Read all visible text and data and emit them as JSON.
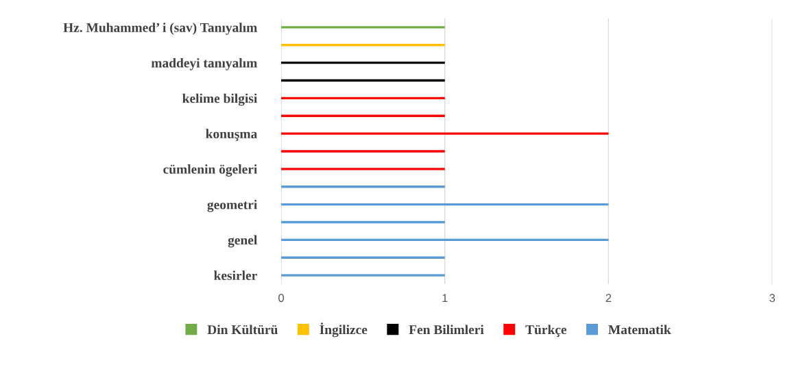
{
  "chart_data": {
    "type": "bar",
    "orientation": "horizontal",
    "categories": [
      "Hz. Muhammed’ i (sav) Tanıyalım",
      null,
      "maddeyi tanıyalım",
      null,
      "kelime bilgisi",
      null,
      "konuşma",
      null,
      "cümlenin ögeleri",
      null,
      "geometri",
      null,
      "genel",
      null,
      "kesirler"
    ],
    "series": [
      {
        "name": "Din Kültürü",
        "color": "#70ad47",
        "values": [
          1,
          null,
          null,
          null,
          null,
          null,
          null,
          null,
          null,
          null,
          null,
          null,
          null,
          null,
          null
        ]
      },
      {
        "name": "İngilizce",
        "color": "#ffc000",
        "values": [
          null,
          1,
          null,
          null,
          null,
          null,
          null,
          null,
          null,
          null,
          null,
          null,
          null,
          null,
          null
        ]
      },
      {
        "name": "Fen Bilimleri",
        "color": "#000000",
        "values": [
          null,
          null,
          1,
          1,
          null,
          null,
          null,
          null,
          null,
          null,
          null,
          null,
          null,
          null,
          null
        ]
      },
      {
        "name": "Türkçe",
        "color": "#ff0000",
        "values": [
          null,
          null,
          null,
          null,
          1,
          1,
          2,
          1,
          1,
          null,
          null,
          null,
          null,
          null,
          null
        ]
      },
      {
        "name": "Matematik",
        "color": "#5b9bd5",
        "values": [
          null,
          null,
          null,
          null,
          null,
          null,
          null,
          null,
          null,
          1,
          2,
          1,
          2,
          1,
          1
        ]
      }
    ],
    "xlim": [
      0,
      3
    ],
    "xticks": [
      0,
      1,
      2,
      3
    ],
    "grid": "x",
    "legend": "bottom"
  }
}
